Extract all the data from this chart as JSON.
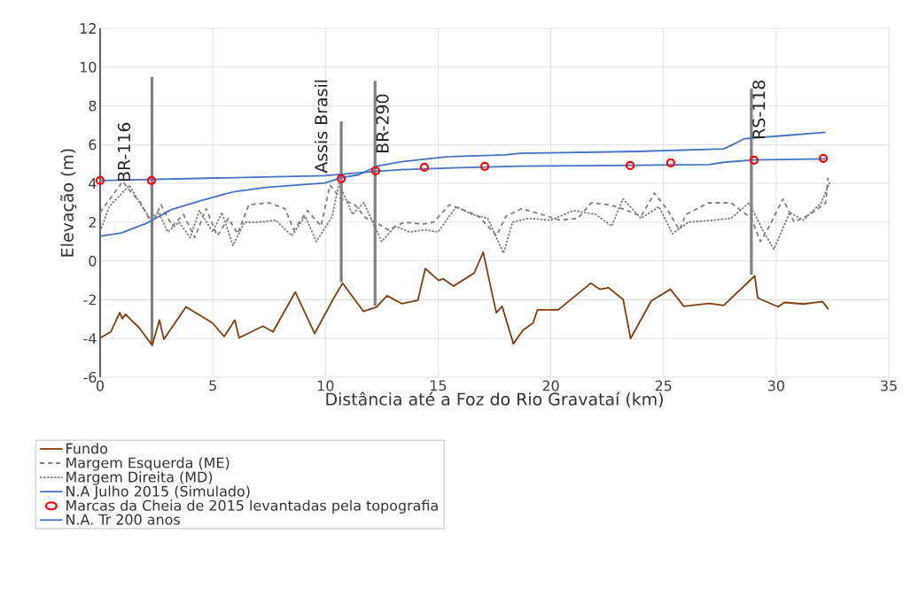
{
  "chart_data": {
    "type": "line",
    "xlabel": "Distância até a Foz do Rio Gravataí (km)",
    "ylabel": "Elevação (m)",
    "xlim": [
      0,
      35
    ],
    "xticks": [
      0,
      5,
      10,
      15,
      20,
      25,
      30,
      35
    ],
    "ylim": [
      -6,
      12
    ],
    "yticks": [
      -6,
      -4,
      -2,
      0,
      2,
      4,
      6,
      8,
      10,
      12
    ],
    "grid": true,
    "legend": "bottom",
    "series": [
      {
        "name": "Fundo",
        "color": "#843c0c",
        "line_style": "solid",
        "x": [
          0,
          0.47,
          0.87,
          0.98,
          1.13,
          1.38,
          1.72,
          2.31,
          2.63,
          2.83,
          3.81,
          4.99,
          5.5,
          5.98,
          6.17,
          7.22,
          7.67,
          8.66,
          9.52,
          10.37,
          10.76,
          11.68,
          12.27,
          12.73,
          13.38,
          14.1,
          14.43,
          15.02,
          15.22,
          15.68,
          16.6,
          17.0,
          17.58,
          17.84,
          18.34,
          18.76,
          19.21,
          19.41,
          20.33,
          21.77,
          22.17,
          22.56,
          23.21,
          23.54,
          24.46,
          25.31,
          25.9,
          27.02,
          27.67,
          29.05,
          29.18,
          30.09,
          30.36,
          31.21,
          32.06,
          32.32
        ],
        "values": [
          -3.97,
          -3.66,
          -2.66,
          -2.98,
          -2.75,
          -3.05,
          -3.43,
          -4.35,
          -3.05,
          -4.04,
          -2.37,
          -3.2,
          -3.9,
          -3.05,
          -3.97,
          -3.36,
          -3.66,
          -1.6,
          -3.74,
          -1.91,
          -1.15,
          -2.6,
          -2.37,
          -1.79,
          -2.2,
          -2.03,
          -0.39,
          -1.0,
          -0.92,
          -1.3,
          -0.62,
          0.45,
          -2.67,
          -2.34,
          -4.27,
          -3.58,
          -3.2,
          -2.52,
          -2.52,
          -1.15,
          -1.46,
          -1.38,
          -1.99,
          -4.0,
          -2.06,
          -1.46,
          -2.34,
          -2.19,
          -2.29,
          -0.77,
          -1.91,
          -2.37,
          -2.14,
          -2.22,
          -2.1,
          -2.49
        ]
      },
      {
        "name": "Margem Esquerda (ME)",
        "color": "#7f7f7f",
        "line_style": "dashed",
        "x": [
          0,
          0.5,
          1.0,
          1.4,
          1.8,
          2.3,
          2.7,
          3.2,
          3.7,
          4.2,
          4.7,
          5.2,
          5.7,
          6.1,
          6.6,
          7.5,
          8.2,
          8.6,
          9.2,
          9.8,
          10.2,
          10.7,
          11.3,
          11.8,
          12.2,
          12.8,
          13.5,
          14.3,
          14.8,
          15.5,
          16.2,
          16.8,
          17.6,
          18.0,
          18.7,
          19.6,
          20.4,
          21.2,
          21.8,
          22.6,
          23.4,
          24.0,
          24.6,
          25.2,
          25.7,
          26.0,
          27.0,
          28.0,
          28.9,
          29.3,
          29.7,
          30.3,
          30.8,
          31.5,
          32.2,
          32.3
        ],
        "values": [
          2.5,
          3.3,
          4.1,
          3.5,
          3.0,
          1.9,
          2.9,
          1.8,
          2.4,
          1.2,
          2.7,
          1.3,
          2.2,
          1.4,
          2.9,
          3.0,
          2.7,
          1.6,
          2.6,
          1.8,
          3.9,
          3.2,
          2.9,
          2.2,
          2.0,
          1.6,
          2.0,
          1.9,
          2.0,
          2.9,
          2.6,
          2.3,
          1.3,
          2.3,
          2.7,
          2.4,
          2.1,
          2.2,
          3.0,
          2.9,
          2.6,
          2.3,
          3.5,
          2.6,
          1.6,
          2.4,
          3.0,
          3.0,
          2.2,
          1.0,
          1.8,
          3.2,
          2.0,
          2.4,
          3.0,
          4.3
        ]
      },
      {
        "name": "Margem Direita (MD)",
        "color": "#7f7f7f",
        "line_style": "dotted",
        "x": [
          0,
          0.4,
          0.9,
          1.3,
          1.7,
          2.2,
          2.6,
          3.0,
          3.5,
          4.0,
          4.4,
          5.0,
          5.4,
          5.9,
          6.4,
          7.0,
          7.8,
          8.5,
          9.1,
          9.6,
          10.3,
          10.6,
          11.2,
          11.7,
          12.1,
          12.5,
          13.1,
          13.7,
          14.4,
          15.0,
          15.8,
          16.5,
          17.2,
          17.9,
          18.3,
          19.0,
          20.0,
          21.0,
          22.0,
          22.7,
          23.2,
          24.0,
          24.8,
          25.4,
          26.1,
          27.2,
          28.0,
          28.8,
          29.4,
          29.9,
          30.6,
          31.2,
          32.0,
          32.4
        ],
        "values": [
          1.5,
          2.8,
          3.4,
          3.9,
          3.1,
          2.2,
          2.5,
          1.5,
          2.0,
          1.2,
          2.6,
          1.5,
          2.5,
          0.8,
          2.0,
          2.0,
          2.1,
          1.3,
          2.3,
          1.0,
          2.3,
          4.0,
          2.4,
          3.0,
          2.0,
          1.0,
          1.8,
          1.5,
          1.6,
          1.5,
          2.8,
          2.4,
          2.2,
          0.4,
          2.0,
          2.2,
          2.1,
          2.6,
          2.4,
          1.8,
          3.2,
          2.2,
          2.8,
          1.4,
          2.0,
          2.1,
          2.2,
          3.0,
          1.6,
          0.6,
          2.5,
          2.1,
          3.0,
          4.1
        ]
      },
      {
        "name": "N.A Julho 2015 (Simulado)",
        "color": "#4472c4",
        "line_style": "solid",
        "x": [
          0,
          9.98,
          12.27,
          13.37,
          15.34,
          18.63,
          23.87,
          27.02,
          27.67,
          28.98,
          32.19
        ],
        "values": [
          4.15,
          4.4,
          4.63,
          4.71,
          4.79,
          4.89,
          4.94,
          4.97,
          5.09,
          5.21,
          5.27
        ]
      },
      {
        "name": "Marcas da Cheia de 2015 levantadas pela topografia",
        "type": "scatter",
        "marker": "circle",
        "color": "#ff0000",
        "x": [
          0,
          2.28,
          10.7,
          12.23,
          14.39,
          17.07,
          23.52,
          25.32,
          29.02,
          32.09
        ],
        "values": [
          4.15,
          4.15,
          4.24,
          4.65,
          4.83,
          4.88,
          4.92,
          5.06,
          5.2,
          5.29
        ]
      },
      {
        "name": "N.A. Tr 200 anos",
        "color": "#4472c4",
        "line_style": "solid",
        "x": [
          0,
          0.93,
          2.11,
          3.16,
          4.47,
          5.91,
          7.35,
          9.98,
          10.7,
          11.5,
          12.27,
          13.37,
          15.34,
          17.97,
          18.63,
          23.87,
          27.67,
          28.07,
          28.59,
          30.29,
          32.19
        ],
        "values": [
          1.28,
          1.44,
          1.97,
          2.65,
          3.11,
          3.57,
          3.79,
          4.02,
          4.3,
          4.45,
          4.89,
          5.12,
          5.37,
          5.47,
          5.55,
          5.65,
          5.78,
          6.0,
          6.31,
          6.46,
          6.64
        ]
      },
      {
        "color": "#808080",
        "line_style": "solid",
        "x": [
          2.3,
          2.3
        ],
        "values": [
          -4.3,
          9.5
        ]
      },
      {
        "color": "#808080",
        "line_style": "solid",
        "x": [
          10.7,
          10.7
        ],
        "values": [
          -1.1,
          7.2
        ]
      },
      {
        "color": "#808080",
        "line_style": "solid",
        "x": [
          12.2,
          12.2
        ],
        "values": [
          -2.3,
          9.3
        ]
      },
      {
        "color": "#808080",
        "line_style": "solid",
        "x": [
          28.9,
          28.9
        ],
        "values": [
          -0.7,
          8.9
        ]
      }
    ],
    "annotations": [
      {
        "text": "BR-116",
        "x": 1.06,
        "y": 4.0
      },
      {
        "text": "Assis Brasil",
        "x": 9.8,
        "y": 4.47
      },
      {
        "text": "BR-290",
        "x": 12.2,
        "y": 5.33
      },
      {
        "text": "RS-118",
        "x": 28.9,
        "y": 6.06
      }
    ]
  }
}
